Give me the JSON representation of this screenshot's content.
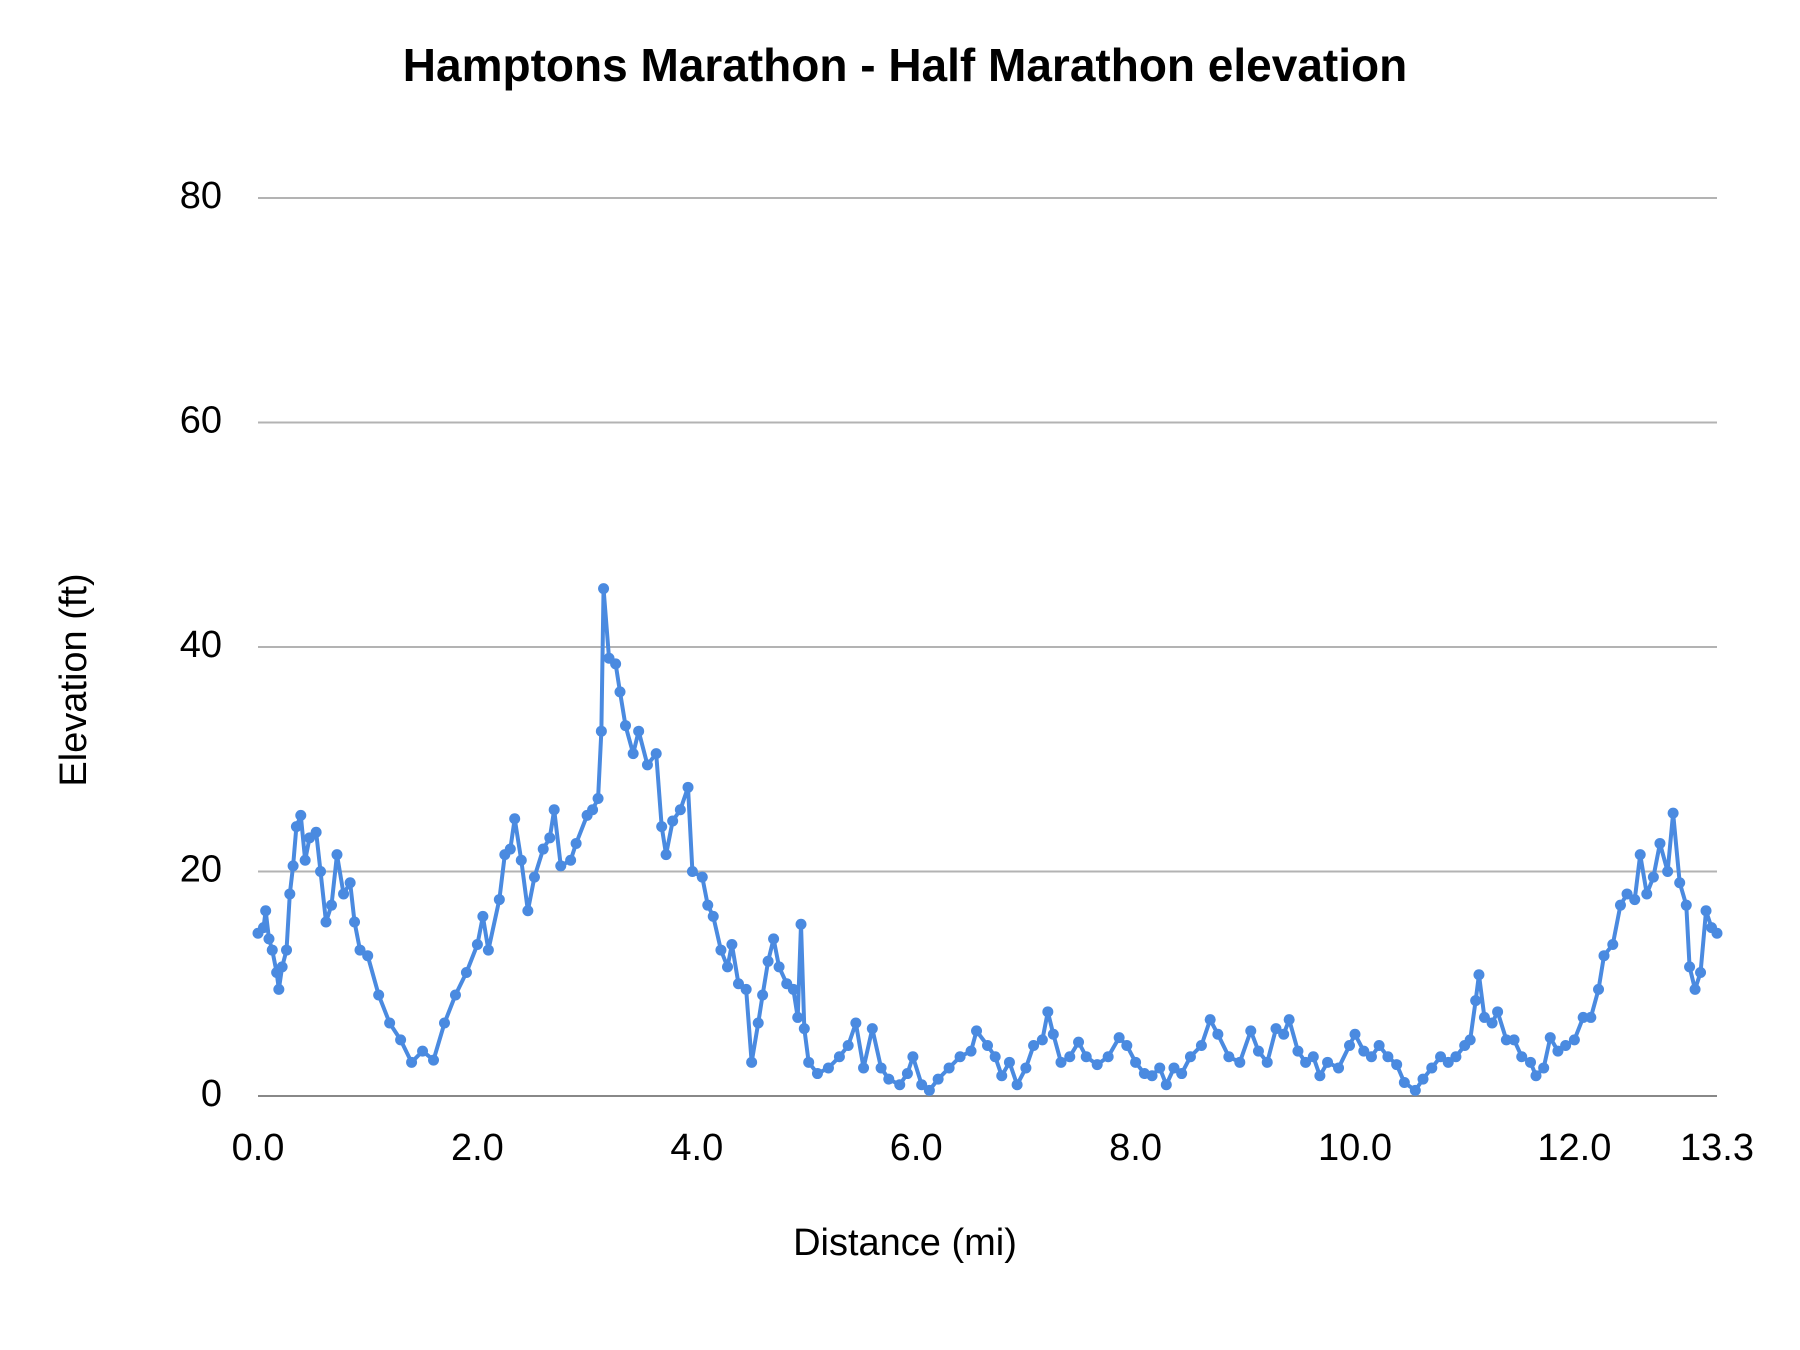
{
  "chart_data": {
    "type": "line",
    "title": "Hamptons Marathon - Half Marathon elevation",
    "x_label": "Distance (mi)",
    "y_label": "Elevation (ft)",
    "xlim": [
      0,
      13.3
    ],
    "xticks": [
      {
        "value": 0,
        "label": "0.0"
      },
      {
        "value": 2,
        "label": "2.0"
      },
      {
        "value": 4,
        "label": "4.0"
      },
      {
        "value": 6,
        "label": "6.0"
      },
      {
        "value": 8,
        "label": "8.0"
      },
      {
        "value": 10,
        "label": "10.0"
      },
      {
        "value": 12,
        "label": "12.0"
      },
      13.3
    ],
    "ylim": [
      0,
      80
    ],
    "yticks": [
      0,
      20,
      40,
      60,
      80
    ],
    "grid": true,
    "x": [
      0.0,
      0.05,
      0.07,
      0.1,
      0.13,
      0.17,
      0.19,
      0.22,
      0.26,
      0.29,
      0.32,
      0.35,
      0.39,
      0.43,
      0.47,
      0.53,
      0.57,
      0.62,
      0.67,
      0.72,
      0.78,
      0.84,
      0.88,
      0.93,
      1.0,
      1.1,
      1.2,
      1.3,
      1.4,
      1.5,
      1.6,
      1.7,
      1.8,
      1.9,
      2.0,
      2.05,
      2.1,
      2.2,
      2.25,
      2.3,
      2.34,
      2.4,
      2.46,
      2.52,
      2.6,
      2.66,
      2.7,
      2.76,
      2.85,
      2.9,
      3.0,
      3.05,
      3.1,
      3.13,
      3.15,
      3.2,
      3.26,
      3.3,
      3.35,
      3.42,
      3.47,
      3.55,
      3.63,
      3.68,
      3.72,
      3.78,
      3.85,
      3.92,
      3.96,
      4.05,
      4.1,
      4.15,
      4.22,
      4.28,
      4.32,
      4.38,
      4.45,
      4.5,
      4.56,
      4.6,
      4.65,
      4.7,
      4.75,
      4.82,
      4.88,
      4.92,
      4.95,
      4.98,
      5.02,
      5.1,
      5.2,
      5.3,
      5.38,
      5.45,
      5.52,
      5.6,
      5.68,
      5.75,
      5.85,
      5.92,
      5.97,
      6.05,
      6.12,
      6.2,
      6.3,
      6.4,
      6.5,
      6.55,
      6.65,
      6.72,
      6.78,
      6.85,
      6.92,
      7.0,
      7.07,
      7.15,
      7.2,
      7.25,
      7.32,
      7.4,
      7.48,
      7.55,
      7.65,
      7.75,
      7.85,
      7.92,
      8.0,
      8.08,
      8.15,
      8.22,
      8.28,
      8.35,
      8.42,
      8.5,
      8.6,
      8.68,
      8.75,
      8.85,
      8.95,
      9.05,
      9.12,
      9.2,
      9.28,
      9.35,
      9.4,
      9.48,
      9.55,
      9.62,
      9.68,
      9.75,
      9.85,
      9.95,
      10.0,
      10.08,
      10.15,
      10.22,
      10.3,
      10.38,
      10.45,
      10.55,
      10.62,
      10.7,
      10.78,
      10.85,
      10.92,
      11.0,
      11.05,
      11.1,
      11.13,
      11.18,
      11.25,
      11.3,
      11.38,
      11.45,
      11.52,
      11.6,
      11.65,
      11.72,
      11.78,
      11.85,
      11.92,
      12.0,
      12.08,
      12.15,
      12.22,
      12.27,
      12.35,
      12.42,
      12.48,
      12.55,
      12.6,
      12.66,
      12.72,
      12.78,
      12.85,
      12.9,
      12.96,
      13.02,
      13.05,
      13.1,
      13.15,
      13.2,
      13.25,
      13.3
    ],
    "series": [
      {
        "color": "#4a8ae0",
        "values": [
          14.5,
          15,
          16.5,
          14,
          13,
          11,
          9.5,
          11.5,
          13,
          18,
          20.5,
          24,
          25,
          21,
          23,
          23.5,
          20,
          15.5,
          17,
          21.5,
          18,
          19,
          15.5,
          13,
          12.5,
          9,
          6.5,
          5,
          3,
          4,
          3.2,
          6.5,
          9,
          11,
          13.5,
          16,
          13,
          17.5,
          21.5,
          22,
          24.7,
          21,
          16.5,
          19.5,
          22,
          23,
          25.5,
          20.5,
          21,
          22.5,
          25,
          25.5,
          26.5,
          32.5,
          45.2,
          39,
          38.5,
          36,
          33,
          30.5,
          32.5,
          29.5,
          30.5,
          24,
          21.5,
          24.5,
          25.5,
          27.5,
          20,
          19.5,
          17,
          16,
          13,
          11.5,
          13.5,
          10,
          9.5,
          3,
          6.5,
          9,
          12,
          14,
          11.5,
          10,
          9.5,
          7,
          15.3,
          6,
          3,
          2,
          2.5,
          3.5,
          4.5,
          6.5,
          2.5,
          6,
          2.5,
          1.5,
          1,
          2,
          3.5,
          1,
          0.5,
          1.5,
          2.5,
          3.5,
          4,
          5.8,
          4.5,
          3.5,
          1.8,
          3,
          1,
          2.5,
          4.5,
          5,
          7.5,
          5.5,
          3,
          3.5,
          4.8,
          3.5,
          2.8,
          3.5,
          5.2,
          4.5,
          3,
          2,
          1.8,
          2.5,
          1,
          2.5,
          2,
          3.5,
          4.5,
          6.8,
          5.5,
          3.5,
          3,
          5.8,
          4,
          3,
          6,
          5.5,
          6.8,
          4,
          3,
          3.5,
          1.8,
          3,
          2.5,
          4.5,
          5.5,
          4,
          3.5,
          4.5,
          3.5,
          2.8,
          1.2,
          0.5,
          1.5,
          2.5,
          3.5,
          3,
          3.5,
          4.5,
          5,
          8.5,
          10.8,
          7,
          6.5,
          7.5,
          5,
          5,
          3.5,
          3,
          1.8,
          2.5,
          5.2,
          4,
          4.5,
          5,
          7,
          7,
          9.5,
          12.5,
          13.5,
          17,
          18,
          17.5,
          21.5,
          18,
          19.5,
          22.5,
          20,
          25.2,
          19,
          17,
          11.5,
          9.5,
          11,
          16.5,
          15,
          14.5
        ]
      }
    ]
  }
}
